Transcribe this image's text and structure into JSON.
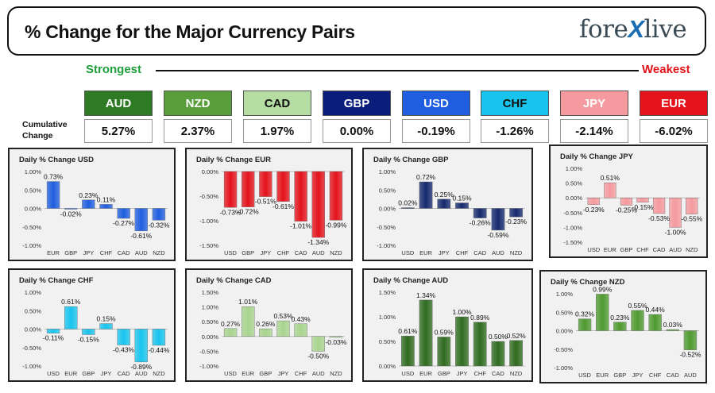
{
  "header": {
    "title": "% Change for the Major Currency Pairs",
    "logo_left": "fore",
    "logo_x": "X",
    "logo_right": "live"
  },
  "strength": {
    "strongest_label": "Strongest",
    "weakest_label": "Weakest",
    "cumulative_label": "Cumulative Change"
  },
  "currencies": [
    {
      "name": "AUD",
      "value": "5.27%",
      "bg": "#2f7a24",
      "fg": "#ffffff"
    },
    {
      "name": "NZD",
      "value": "2.37%",
      "bg": "#5a9e3c",
      "fg": "#ffffff"
    },
    {
      "name": "CAD",
      "value": "1.97%",
      "bg": "#b5dca2",
      "fg": "#111111"
    },
    {
      "name": "GBP",
      "value": "0.00%",
      "bg": "#0b1d7a",
      "fg": "#ffffff"
    },
    {
      "name": "USD",
      "value": "-0.19%",
      "bg": "#1f5ee0",
      "fg": "#ffffff"
    },
    {
      "name": "CHF",
      "value": "-1.26%",
      "bg": "#18c4ee",
      "fg": "#111111"
    },
    {
      "name": "JPY",
      "value": "-2.14%",
      "bg": "#f59a9f",
      "fg": "#ffffff"
    },
    {
      "name": "EUR",
      "value": "-6.02%",
      "bg": "#e4121b",
      "fg": "#ffffff"
    }
  ],
  "chart_data": [
    {
      "type": "bar",
      "title": "Daily % Change USD",
      "categories": [
        "EUR",
        "GBP",
        "JPY",
        "CHF",
        "CAD",
        "AUD",
        "NZD"
      ],
      "values": [
        0.73,
        -0.02,
        0.23,
        0.11,
        -0.27,
        -0.61,
        -0.32
      ],
      "labels": [
        "0.73%",
        "-0.02%",
        "0.23%",
        "0.11%",
        "-0.27%",
        "-0.61%",
        "-0.32%"
      ],
      "ylim": [
        -1.0,
        1.0
      ],
      "yticks": [
        1.0,
        0.5,
        0.0,
        -0.5,
        -1.0
      ],
      "ytick_labels": [
        "1.00%",
        "0.50%",
        "0.00%",
        "-0.50%",
        "-1.00%"
      ],
      "color": "#1f5ee0"
    },
    {
      "type": "bar",
      "title": "Daily % Change EUR",
      "categories": [
        "USD",
        "GBP",
        "JPY",
        "CHF",
        "CAD",
        "AUD",
        "NZD"
      ],
      "values": [
        -0.73,
        -0.72,
        -0.51,
        -0.61,
        -1.01,
        -1.34,
        -0.99
      ],
      "labels": [
        "-0.73%",
        "-0.72%",
        "-0.51%",
        "-0.61%",
        "-1.01%",
        "-1.34%",
        "-0.99%"
      ],
      "ylim": [
        -1.5,
        0.0
      ],
      "yticks": [
        0.0,
        -0.5,
        -1.0,
        -1.5
      ],
      "ytick_labels": [
        "0.00%",
        "-0.50%",
        "-1.00%",
        "-1.50%"
      ],
      "color": "#e4121b"
    },
    {
      "type": "bar",
      "title": "Daily % Change GBP",
      "categories": [
        "USD",
        "EUR",
        "JPY",
        "CHF",
        "CAD",
        "AUD",
        "NZD"
      ],
      "values": [
        0.02,
        0.72,
        0.25,
        0.15,
        -0.26,
        -0.59,
        -0.23
      ],
      "labels": [
        "0.02%",
        "0.72%",
        "0.25%",
        "0.15%",
        "-0.26%",
        "-0.59%",
        "-0.23%"
      ],
      "ylim": [
        -1.0,
        1.0
      ],
      "yticks": [
        1.0,
        0.5,
        0.0,
        -0.5,
        -1.0
      ],
      "ytick_labels": [
        "1.00%",
        "0.50%",
        "0.00%",
        "-0.50%",
        "-1.00%"
      ],
      "color": "#15296e"
    },
    {
      "type": "bar",
      "title": "Daily % Change JPY",
      "categories": [
        "USD",
        "EUR",
        "GBP",
        "CHF",
        "CAD",
        "AUD",
        "NZD"
      ],
      "values": [
        -0.23,
        0.51,
        -0.25,
        -0.15,
        -0.53,
        -1.0,
        -0.55
      ],
      "labels": [
        "-0.23%",
        "0.51%",
        "-0.25%",
        "-0.15%",
        "-0.53%",
        "-1.00%",
        "-0.55%"
      ],
      "ylim": [
        -1.5,
        1.0
      ],
      "yticks": [
        1.0,
        0.5,
        0.0,
        -0.5,
        -1.0,
        -1.5
      ],
      "ytick_labels": [
        "1.00%",
        "0.50%",
        "0.00%",
        "-0.50%",
        "-1.00%",
        "-1.50%"
      ],
      "color": "#f59a9f"
    },
    {
      "type": "bar",
      "title": "Daily % Change CHF",
      "categories": [
        "USD",
        "EUR",
        "GBP",
        "JPY",
        "CAD",
        "AUD",
        "NZD"
      ],
      "values": [
        -0.11,
        0.61,
        -0.15,
        0.15,
        -0.43,
        -0.89,
        -0.44
      ],
      "labels": [
        "-0.11%",
        "0.61%",
        "-0.15%",
        "0.15%",
        "-0.43%",
        "-0.89%",
        "-0.44%"
      ],
      "ylim": [
        -1.0,
        1.0
      ],
      "yticks": [
        1.0,
        0.5,
        0.0,
        -0.5,
        -1.0
      ],
      "ytick_labels": [
        "1.00%",
        "0.50%",
        "0.00%",
        "-0.50%",
        "-1.00%"
      ],
      "color": "#18c4ee"
    },
    {
      "type": "bar",
      "title": "Daily % Change CAD",
      "categories": [
        "USD",
        "EUR",
        "GBP",
        "JPY",
        "CHF",
        "AUD",
        "NZD"
      ],
      "values": [
        0.27,
        1.01,
        0.26,
        0.53,
        0.43,
        -0.5,
        -0.03
      ],
      "labels": [
        "0.27%",
        "1.01%",
        "0.26%",
        "0.53%",
        "0.43%",
        "-0.50%",
        "-0.03%"
      ],
      "ylim": [
        -1.0,
        1.5
      ],
      "yticks": [
        1.5,
        1.0,
        0.5,
        0.0,
        -0.5,
        -1.0
      ],
      "ytick_labels": [
        "1.50%",
        "1.00%",
        "0.50%",
        "0.00%",
        "-0.50%",
        "-1.00%"
      ],
      "color": "#a8d48e"
    },
    {
      "type": "bar",
      "title": "Daily % Change AUD",
      "categories": [
        "USD",
        "EUR",
        "GBP",
        "JPY",
        "CHF",
        "CAD",
        "NZD"
      ],
      "values": [
        0.61,
        1.34,
        0.59,
        1.0,
        0.89,
        0.5,
        0.52
      ],
      "labels": [
        "0.61%",
        "1.34%",
        "0.59%",
        "1.00%",
        "0.89%",
        "0.50%",
        "0.52%"
      ],
      "ylim": [
        0.0,
        1.5
      ],
      "yticks": [
        1.5,
        1.0,
        0.5,
        0.0
      ],
      "ytick_labels": [
        "1.50%",
        "1.00%",
        "0.50%",
        "0.00%"
      ],
      "color": "#2f6b1f"
    },
    {
      "type": "bar",
      "title": "Daily % Change NZD",
      "categories": [
        "USD",
        "EUR",
        "GBP",
        "JPY",
        "CHF",
        "CAD",
        "AUD"
      ],
      "values": [
        0.32,
        0.99,
        0.23,
        0.55,
        0.44,
        0.03,
        -0.52
      ],
      "labels": [
        "0.32%",
        "0.99%",
        "0.23%",
        "0.55%",
        "0.44%",
        "0.03%",
        "-0.52%"
      ],
      "ylim": [
        -1.0,
        1.0
      ],
      "yticks": [
        1.0,
        0.5,
        0.0,
        -0.5,
        -1.0
      ],
      "ytick_labels": [
        "1.00%",
        "0.50%",
        "0.00%",
        "-0.50%",
        "-1.00%"
      ],
      "color": "#4f9a30"
    }
  ]
}
